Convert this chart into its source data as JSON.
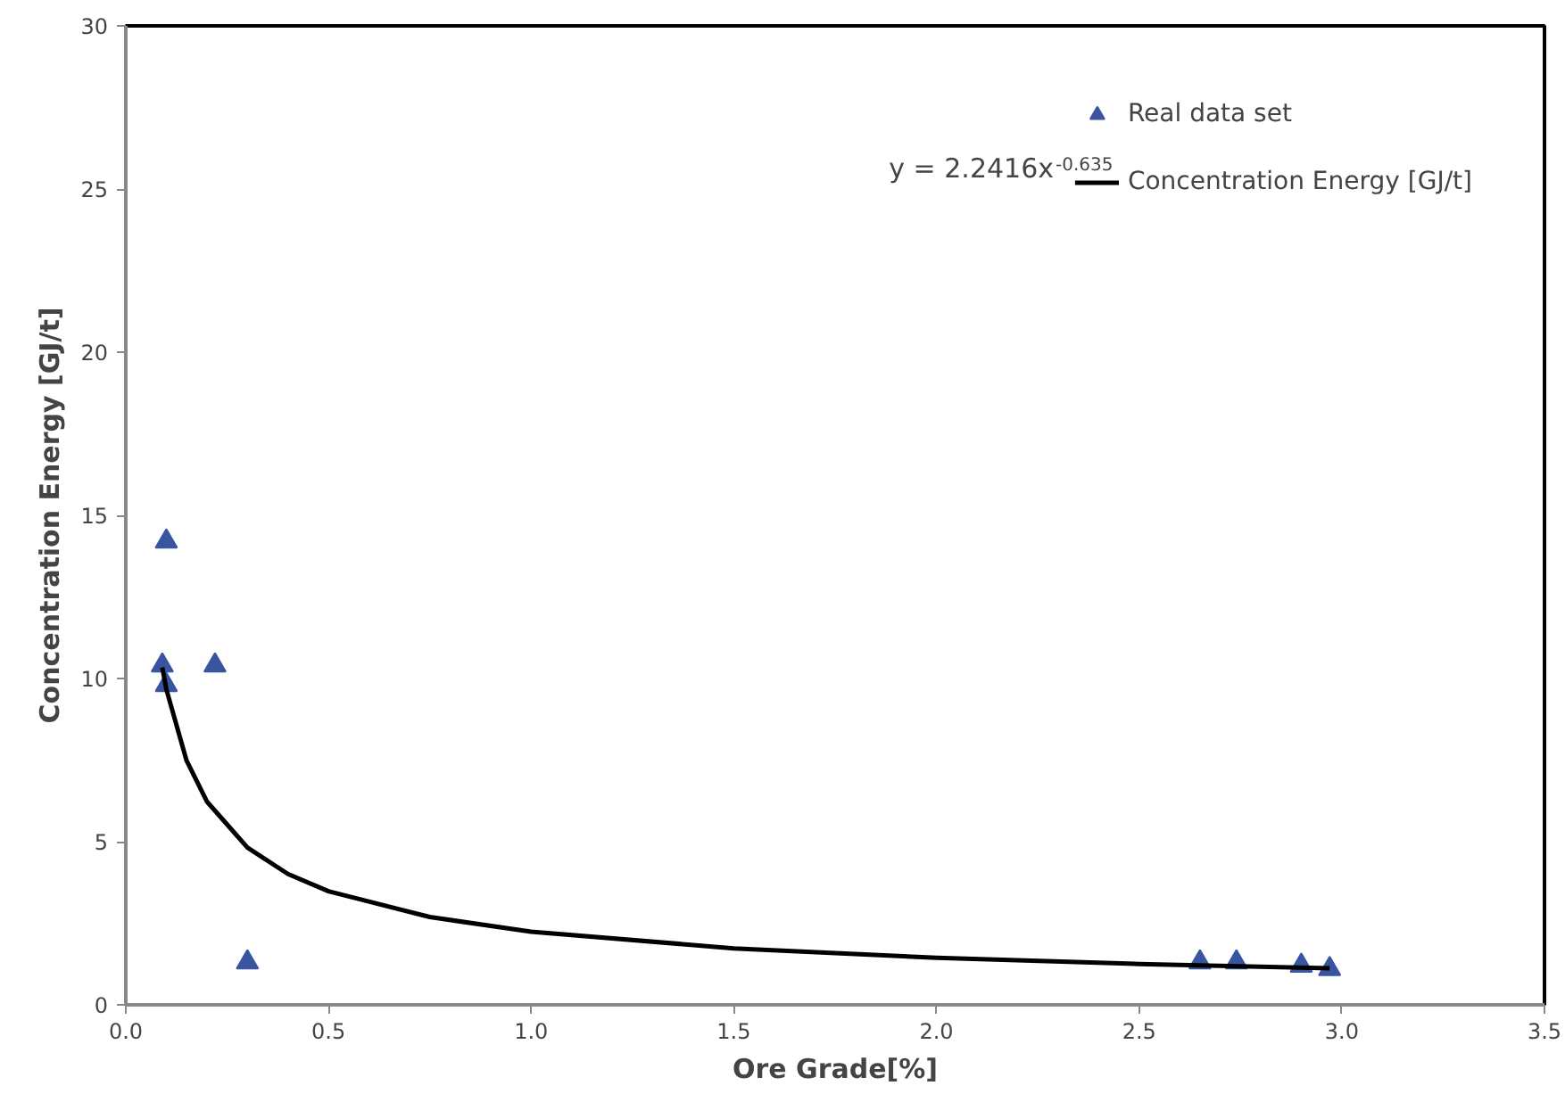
{
  "chart_data": {
    "type": "scatter",
    "xlabel": "Ore Grade[%]",
    "ylabel": "Concentration Energy [GJ/t]",
    "xlim": [
      0,
      3.5
    ],
    "ylim": [
      0,
      30
    ],
    "xticks": [
      {
        "value": 0,
        "label": "0.0"
      },
      0.5,
      {
        "value": 1,
        "label": "1.0"
      },
      1.5,
      {
        "value": 2,
        "label": "2.0"
      },
      2.5,
      {
        "value": 3,
        "label": "3.0"
      },
      3.5
    ],
    "yticks": [
      0,
      5,
      10,
      15,
      20,
      25,
      30
    ],
    "grid": false,
    "legend": "top right",
    "annotations": [
      "y = 2.2416x$^{-0.635}$"
    ],
    "series": [
      {
        "name": "Real data set",
        "marker": "triangle",
        "color": "#3a55a0",
        "x": [
          0.09,
          0.1,
          0.1,
          0.22,
          0.3,
          2.65,
          2.74,
          2.9,
          2.97
        ],
        "values": [
          10.4,
          14.2,
          9.8,
          10.4,
          1.3,
          1.3,
          1.3,
          1.2,
          1.1
        ]
      },
      {
        "name": "Concentration Energy [GJ/t]",
        "type": "line",
        "marker": "none",
        "line_style": "solid",
        "color": "#000000",
        "x": [
          0.09,
          0.1,
          0.15,
          0.2,
          0.3,
          0.4,
          0.5,
          0.75,
          1.0,
          1.5,
          2.0,
          2.5,
          2.97
        ],
        "values": [
          10.34,
          9.67,
          7.48,
          6.23,
          4.82,
          4.01,
          3.48,
          2.69,
          2.24,
          1.73,
          1.44,
          1.25,
          1.12
        ]
      }
    ]
  }
}
